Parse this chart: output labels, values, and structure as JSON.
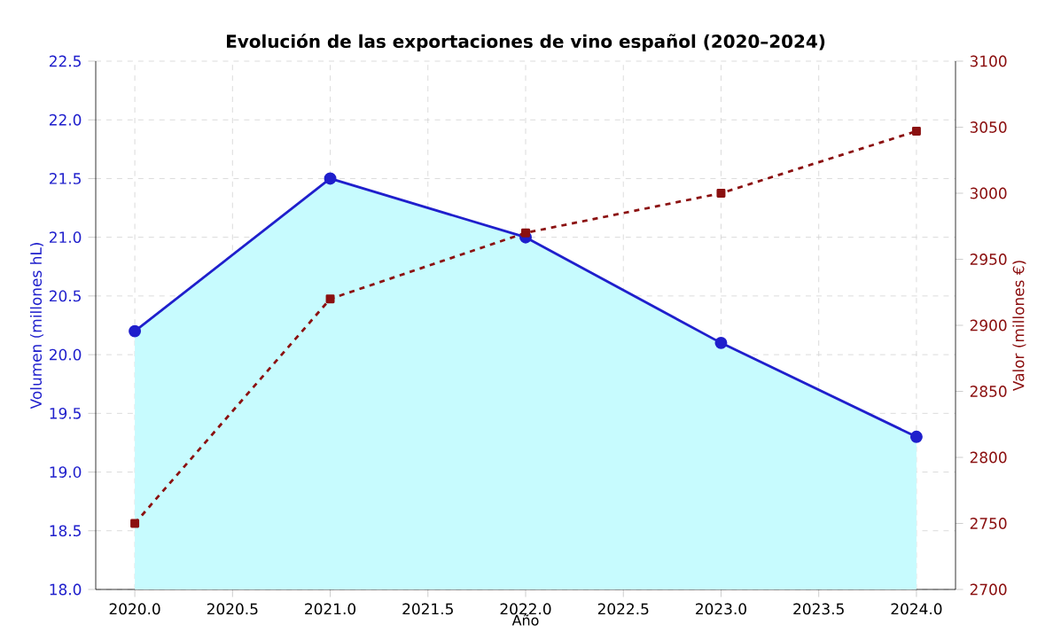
{
  "chart_data": {
    "type": "line",
    "title": "Evolución de las exportaciones de vino español (2020–2024)",
    "xlabel": "Año",
    "ylabel": "Volumen (millones hL)",
    "y2label": "Valor (millones €)",
    "x": [
      2020,
      2021,
      2022,
      2023,
      2024
    ],
    "series": [
      {
        "type": "area",
        "color": "#1f1fcc",
        "values": [
          20.2,
          21.5,
          21.0,
          20.1,
          19.3
        ],
        "marker": "circle",
        "line_style": "solid"
      },
      {
        "axis": "y2",
        "color": "#8b1010",
        "values": [
          2750,
          2920,
          2970,
          3000,
          3047
        ],
        "marker": "square",
        "line_style": "dashed"
      }
    ],
    "xlim": [
      2019.8,
      2024.2
    ],
    "xticks": [
      {
        "value": 2020,
        "label": "2020.0"
      },
      {
        "value": 2020.5,
        "label": "2020.5"
      },
      {
        "value": 2021,
        "label": "2021.0"
      },
      {
        "value": 2021.5,
        "label": "2021.5"
      },
      {
        "value": 2022,
        "label": "2022.0"
      },
      {
        "value": 2022.5,
        "label": "2022.5"
      },
      {
        "value": 2023,
        "label": "2023.0"
      },
      {
        "value": 2023.5,
        "label": "2023.5"
      },
      {
        "value": 2024,
        "label": "2024.0"
      }
    ],
    "ylim": [
      18.0,
      22.5
    ],
    "yticks": [
      {
        "value": 18,
        "label": "18.0"
      },
      18.5,
      {
        "value": 19,
        "label": "19.0"
      },
      19.5,
      {
        "value": 20,
        "label": "20.0"
      },
      20.5,
      {
        "value": 21,
        "label": "21.0"
      },
      21.5,
      {
        "value": 22,
        "label": "22.0"
      },
      22.5
    ],
    "y2lim": [
      2700,
      3100
    ],
    "y2ticks": [
      2700,
      2750,
      2800,
      2850,
      2900,
      2950,
      3000,
      3050,
      3100
    ],
    "grid": true
  }
}
